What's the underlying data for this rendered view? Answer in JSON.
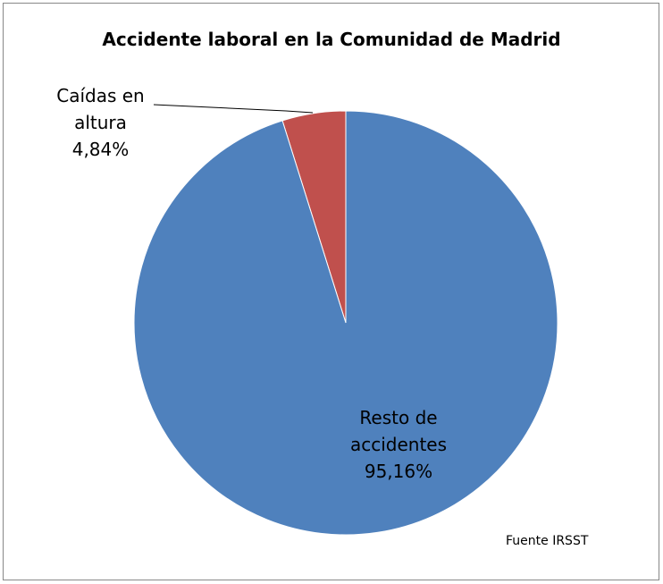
{
  "chart_data": {
    "type": "pie",
    "title": "Accidente laboral en la Comunidad de Madrid",
    "categories": [
      "Resto de accidentes",
      "Caídas en altura"
    ],
    "values": [
      95.16,
      4.84
    ],
    "value_labels": [
      "95,16%",
      "4,84%"
    ],
    "colors": [
      "#4f81bd",
      "#c0504d"
    ],
    "source": "Fuente IRSST"
  }
}
